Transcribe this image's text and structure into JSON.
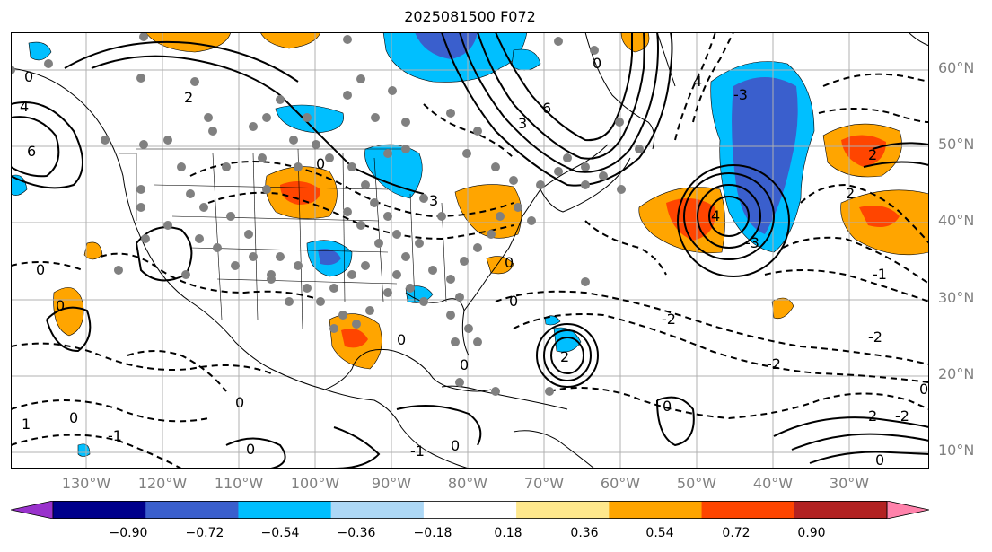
{
  "title": "2025081500 F072",
  "map": {
    "lat_labels": [
      "60°N",
      "50°N",
      "40°N",
      "30°N",
      "20°N",
      "10°N"
    ],
    "lon_labels": [
      "130°W",
      "120°W",
      "110°W",
      "100°W",
      "90°W",
      "80°W",
      "70°W",
      "60°W",
      "50°W",
      "40°W",
      "30°W"
    ],
    "grid": true,
    "coastlines": true,
    "country_borders": true,
    "state_borders": true,
    "contour_labels": [
      "0",
      "2",
      "-2",
      "4",
      "3",
      "-1",
      "6",
      "-3",
      "1"
    ]
  },
  "colorbar": {
    "ticks": [
      "−0.90",
      "−0.72",
      "−0.54",
      "−0.36",
      "−0.18",
      "0.18",
      "0.36",
      "0.54",
      "0.72",
      "0.90"
    ],
    "colors": [
      "#9932cc",
      "#00008b",
      "#3a5fcd",
      "#00bfff",
      "#add8f6",
      "#ffffff",
      "#ffe88c",
      "#ffa500",
      "#ff4500",
      "#b22222",
      "#ff82ab"
    ],
    "extend": "both",
    "placement": "bottom"
  }
}
